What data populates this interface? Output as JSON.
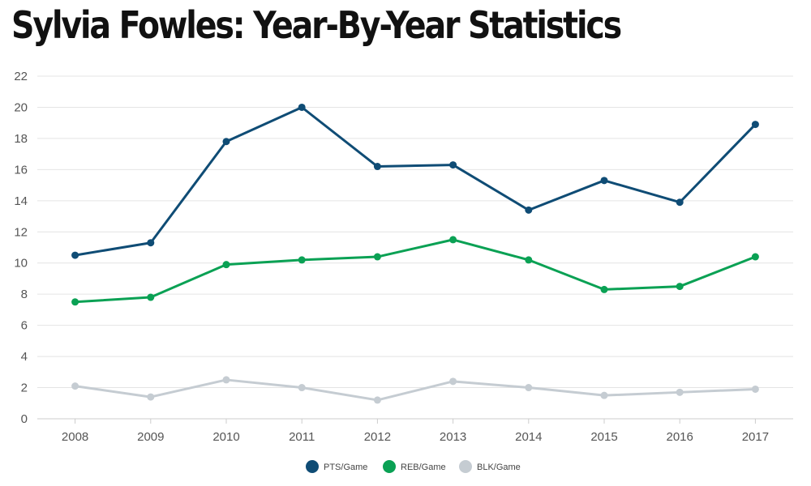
{
  "chart_data": {
    "type": "line",
    "title": "Sylvia Fowles: Year-By-Year Statistics",
    "xlabel": "",
    "ylabel": "",
    "x": [
      "2008",
      "2009",
      "2010",
      "2011",
      "2012",
      "2013",
      "2014",
      "2015",
      "2016",
      "2017"
    ],
    "ylim": [
      0,
      22
    ],
    "yticks": [
      0,
      2,
      4,
      6,
      8,
      10,
      12,
      14,
      16,
      18,
      20,
      22
    ],
    "grid": true,
    "legend_position": "bottom-center",
    "series": [
      {
        "name": "PTS/Game",
        "color": "#0f4c75",
        "values": [
          10.5,
          11.3,
          17.8,
          20.0,
          16.2,
          16.3,
          13.4,
          15.3,
          13.9,
          18.9
        ]
      },
      {
        "name": "REB/Game",
        "color": "#0aa154",
        "values": [
          7.5,
          7.8,
          9.9,
          10.2,
          10.4,
          11.5,
          10.2,
          8.3,
          8.5,
          10.4
        ]
      },
      {
        "name": "BLK/Game",
        "color": "#c5ccd2",
        "values": [
          2.1,
          1.4,
          2.5,
          2.0,
          1.2,
          2.4,
          2.0,
          1.5,
          1.7,
          1.9
        ]
      }
    ]
  }
}
